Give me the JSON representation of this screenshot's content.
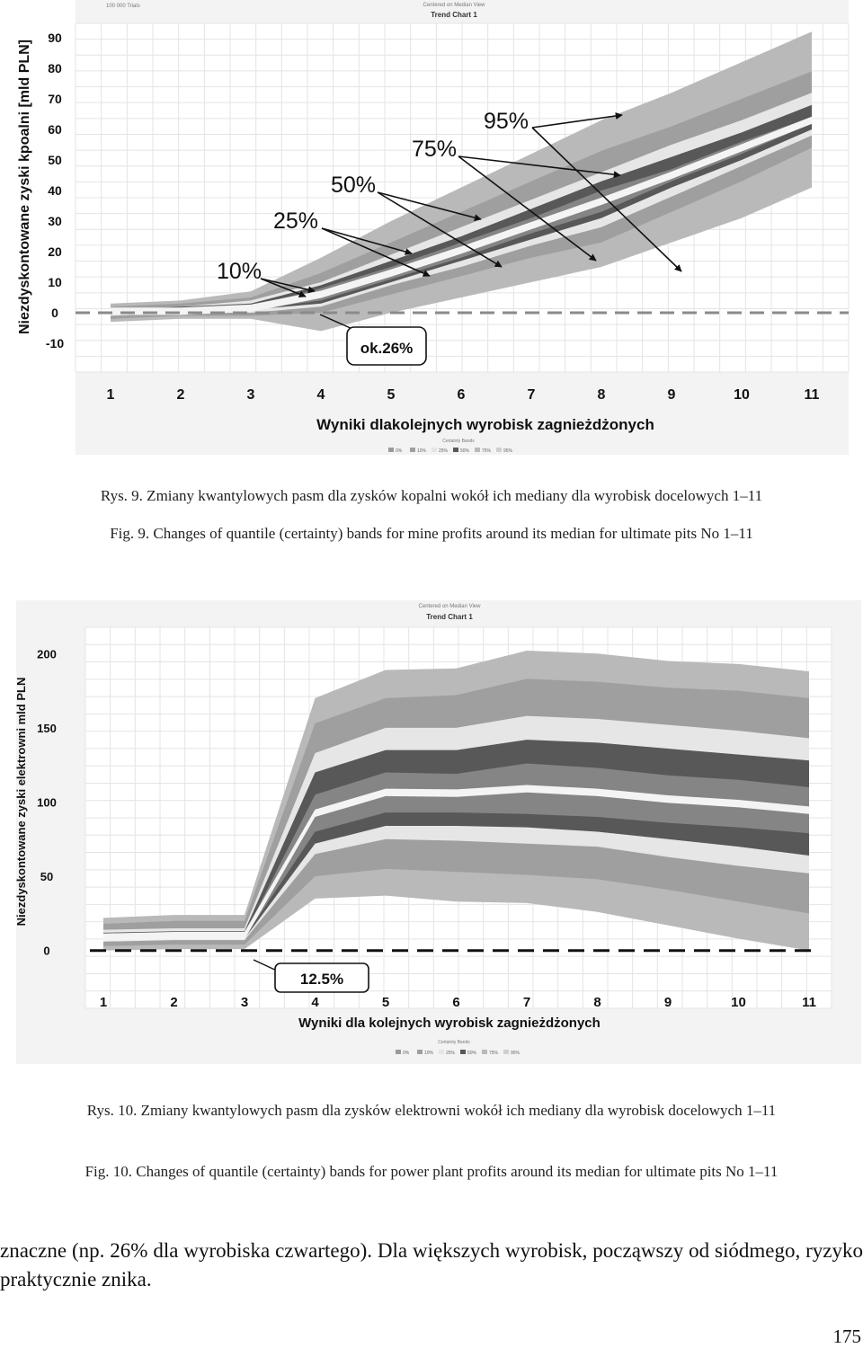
{
  "colors": {
    "band_outer": "#b9b9b9",
    "band_75": "#9f9f9f",
    "band_50": "#e6e6e6",
    "band_25": "#585858",
    "band_10": "#858585",
    "median": "#f4f4f4",
    "baseline": "#888888",
    "grid": "#e4e4e4",
    "panel": "#f3f3f3"
  },
  "chart_data": [
    {
      "type": "area",
      "title": "Trend Chart 1",
      "header_left": "100 000 Trials",
      "header_right": "Centered on Median View",
      "xlabel": "Wyniki dlakolejnych wyrobisk zagnieżdżonych",
      "ylabel": "Niezdyskontowane zyski kpoalni [mld PLN]",
      "x": [
        1,
        2,
        3,
        4,
        5,
        6,
        7,
        8,
        9,
        10,
        11
      ],
      "x_ticks": [
        "1",
        "2",
        "3",
        "4",
        "5",
        "6",
        "7",
        "8",
        "9",
        "10",
        "11"
      ],
      "y_ticks": [
        "90",
        "80",
        "70",
        "60",
        "50",
        "40",
        "30",
        "20",
        "10",
        "0",
        "-10"
      ],
      "ylim": [
        -10,
        90
      ],
      "baseline": 0,
      "bands": [
        {
          "name": "95%",
          "lower": [
            -3,
            -2,
            -2,
            -6,
            0,
            5,
            10,
            15,
            23,
            31,
            41
          ],
          "upper": [
            3,
            4,
            7,
            18,
            30,
            41,
            52,
            63,
            72,
            82,
            92
          ]
        },
        {
          "name": "75%",
          "lower": [
            -2,
            -1,
            -1,
            0,
            6,
            12,
            18,
            23,
            33,
            43,
            54
          ],
          "upper": [
            2,
            3,
            5,
            13,
            23,
            33,
            43,
            53,
            61,
            70,
            79
          ]
        },
        {
          "name": "50%",
          "lower": [
            -1,
            0,
            0,
            2,
            9,
            15,
            22,
            28,
            38,
            48,
            58
          ],
          "upper": [
            1,
            2,
            4,
            10,
            19,
            28,
            37,
            46,
            55,
            63,
            72
          ]
        },
        {
          "name": "25%",
          "lower": [
            0,
            0,
            1,
            3,
            10,
            17,
            24,
            31,
            41,
            50,
            60
          ],
          "upper": [
            1,
            2,
            3,
            9,
            17,
            25,
            34,
            43,
            51,
            59,
            68
          ]
        },
        {
          "name": "10%",
          "lower": [
            0,
            0,
            1,
            4,
            11,
            18,
            26,
            33,
            43,
            52,
            62
          ],
          "upper": [
            1,
            1,
            2,
            8,
            15,
            23,
            31,
            40,
            47,
            56,
            64
          ]
        }
      ],
      "annotations": [
        "10%",
        "25%",
        "50%",
        "75%",
        "95%",
        "ok.26%"
      ],
      "legend_title": "Certainty Bands",
      "legend": [
        "0%",
        "10%",
        "25%",
        "50%",
        "75%",
        "95%"
      ]
    },
    {
      "type": "area",
      "title": "Trend Chart 1",
      "header_right": "Centered on Median View",
      "xlabel": "Wyniki dla kolejnych wyrobisk zagnieżdżonych",
      "ylabel": "Niezdyskontowane zyski elektrowni mld PLN",
      "x": [
        1,
        2,
        3,
        4,
        5,
        6,
        7,
        8,
        9,
        10,
        11
      ],
      "x_ticks": [
        "1",
        "2",
        "3",
        "4",
        "5",
        "6",
        "7",
        "8",
        "9",
        "10",
        "11"
      ],
      "y_ticks": [
        "200",
        "150",
        "100",
        "50",
        "0"
      ],
      "ylim": [
        -5,
        205
      ],
      "baseline": 0,
      "bands": [
        {
          "name": "95%",
          "lower": [
            0,
            1,
            1,
            35,
            37,
            33,
            32,
            26,
            17,
            8,
            0
          ],
          "upper": [
            22,
            24,
            24,
            170,
            189,
            190,
            202,
            200,
            195,
            193,
            188
          ]
        },
        {
          "name": "75%",
          "lower": [
            3,
            4,
            4,
            50,
            55,
            53,
            51,
            48,
            41,
            33,
            25
          ],
          "upper": [
            18,
            20,
            20,
            153,
            170,
            172,
            183,
            181,
            177,
            175,
            170
          ]
        },
        {
          "name": "50%",
          "lower": [
            6,
            7,
            7,
            65,
            75,
            74,
            72,
            70,
            63,
            57,
            52
          ],
          "upper": [
            14,
            15,
            15,
            133,
            150,
            150,
            158,
            156,
            152,
            148,
            143
          ]
        },
        {
          "name": "25%",
          "lower": [
            7,
            8,
            8,
            72,
            84,
            84,
            83,
            80,
            75,
            70,
            64
          ],
          "upper": [
            12,
            13,
            13,
            120,
            135,
            135,
            142,
            140,
            136,
            132,
            128
          ]
        },
        {
          "name": "10%",
          "lower": [
            8,
            9,
            9,
            80,
            93,
            93,
            92,
            90,
            86,
            83,
            79
          ],
          "upper": [
            10,
            11,
            11,
            105,
            120,
            119,
            126,
            123,
            118,
            115,
            110
          ]
        }
      ],
      "annotations": [
        "12.5%"
      ],
      "legend_title": "Certainty Bands",
      "legend": [
        "0%",
        "10%",
        "25%",
        "50%",
        "75%",
        "95%"
      ]
    }
  ],
  "captions": {
    "fig9_pl": "Rys. 9. Zmiany kwantylowych pasm dla zysków kopalni wokół ich mediany dla wyrobisk docelowych 1–11",
    "fig9_en": "Fig. 9. Changes of quantile (certainty) bands for mine profits around its median for ultimate pits No 1–11",
    "fig10_pl": "Rys. 10. Zmiany kwantylowych pasm dla zysków elektrowni wokół ich mediany dla wyrobisk docelowych 1–11",
    "fig10_en": "Fig. 10. Changes of quantile (certainty) bands for power plant profits around its median for ultimate pits No 1–11"
  },
  "body_text": "znaczne (np. 26% dla wyrobiska czwartego). Dla większych wyrobisk, począwszy od siódmego, ryzyko praktycznie znika.",
  "page_number": "175"
}
